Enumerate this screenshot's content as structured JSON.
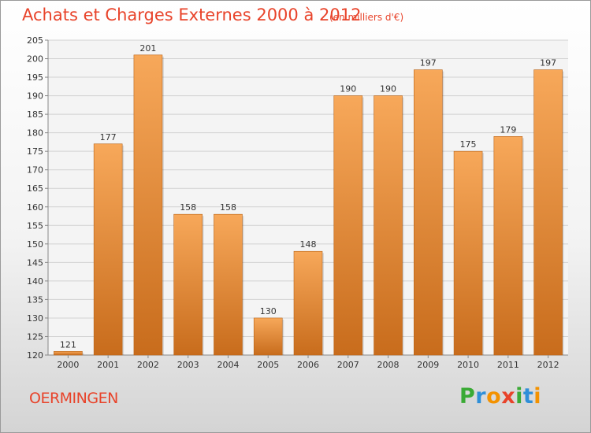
{
  "title": "Achats et Charges Externes 2000 à 2012",
  "unit": "(en milliers d'€)",
  "commune": "OERMINGEN",
  "brand": {
    "letters": [
      "P",
      "r",
      "o",
      "x",
      "i",
      "t",
      "i"
    ],
    "colors": [
      "#3aaa35",
      "#2f8fd8",
      "#f39200",
      "#e8432a",
      "#3aaa35",
      "#2f8fd8",
      "#f39200"
    ]
  },
  "colors": {
    "bar_light": "#f7a85a",
    "bar_dark": "#c86c1c",
    "text_accent": "#e8432a"
  },
  "chart_data": {
    "type": "bar",
    "title": "Achats et Charges Externes 2000 à 2012",
    "categories": [
      "2000",
      "2001",
      "2002",
      "2003",
      "2004",
      "2005",
      "2006",
      "2007",
      "2008",
      "2009",
      "2010",
      "2011",
      "2012"
    ],
    "values": [
      121,
      177,
      201,
      158,
      158,
      130,
      148,
      190,
      190,
      197,
      175,
      179,
      197
    ],
    "ylim": [
      120,
      205
    ],
    "yticks": [
      120,
      125,
      130,
      135,
      140,
      145,
      150,
      155,
      160,
      165,
      170,
      175,
      180,
      185,
      190,
      195,
      200,
      205
    ],
    "grid": true,
    "legend": "none"
  }
}
